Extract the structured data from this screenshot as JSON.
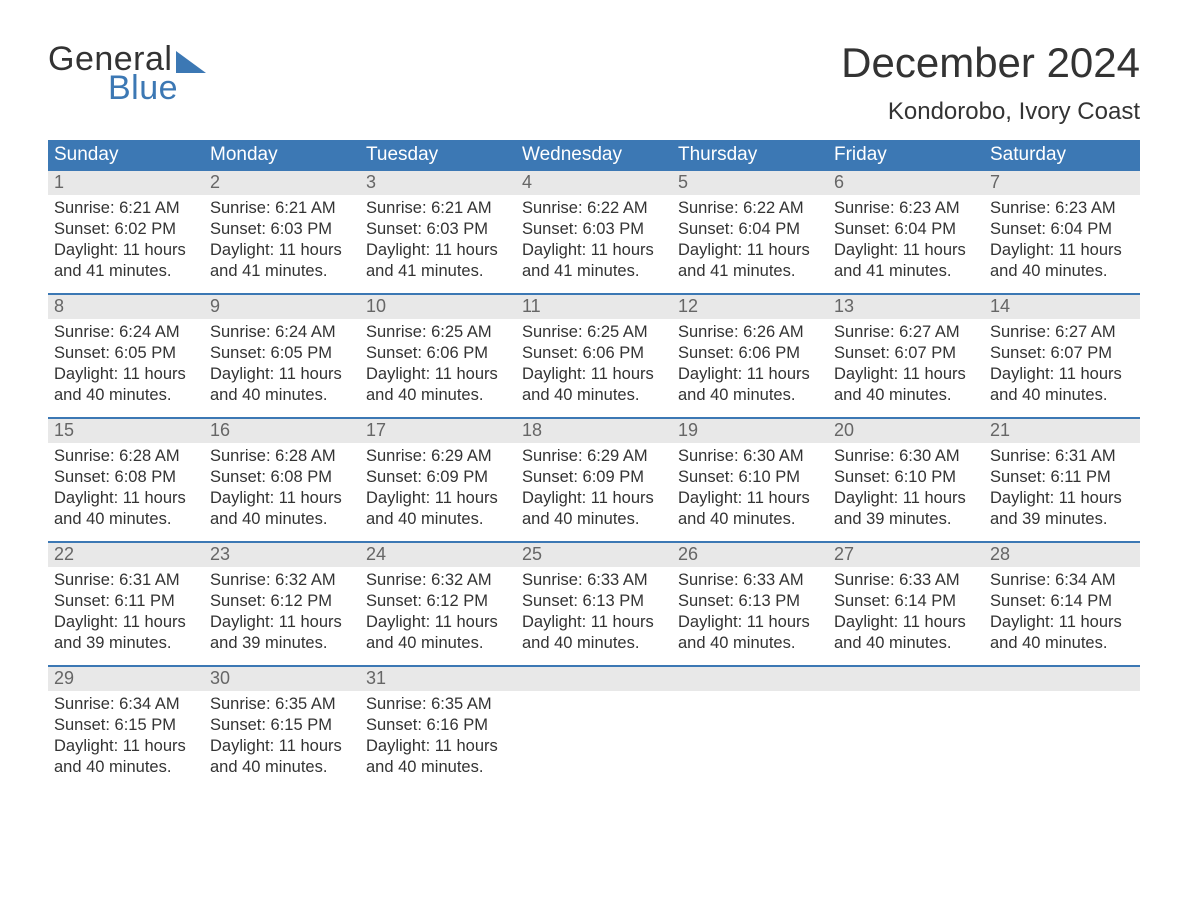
{
  "brand": {
    "word1": "General",
    "word2": "Blue",
    "word1_color": "#333333",
    "word2_color": "#3c78b4",
    "wedge_color": "#3c78b4",
    "font_size": 34
  },
  "header": {
    "month_title": "December 2024",
    "location": "Kondorobo, Ivory Coast",
    "title_color": "#333333",
    "title_fontsize": 42,
    "location_fontsize": 24
  },
  "calendar": {
    "header_bg": "#3c78b4",
    "header_text_color": "#ffffff",
    "row_divider_color": "#3c78b4",
    "daynum_bg": "#e8e8e8",
    "daynum_color": "#666666",
    "body_text_color": "#333333",
    "background_color": "#ffffff",
    "body_fontsize": 16.5,
    "dow_fontsize": 19,
    "days_of_week": [
      "Sunday",
      "Monday",
      "Tuesday",
      "Wednesday",
      "Thursday",
      "Friday",
      "Saturday"
    ],
    "leading_blanks": 0,
    "days": [
      {
        "n": 1,
        "sunrise": "6:21 AM",
        "sunset": "6:02 PM",
        "daylight": "11 hours and 41 minutes."
      },
      {
        "n": 2,
        "sunrise": "6:21 AM",
        "sunset": "6:03 PM",
        "daylight": "11 hours and 41 minutes."
      },
      {
        "n": 3,
        "sunrise": "6:21 AM",
        "sunset": "6:03 PM",
        "daylight": "11 hours and 41 minutes."
      },
      {
        "n": 4,
        "sunrise": "6:22 AM",
        "sunset": "6:03 PM",
        "daylight": "11 hours and 41 minutes."
      },
      {
        "n": 5,
        "sunrise": "6:22 AM",
        "sunset": "6:04 PM",
        "daylight": "11 hours and 41 minutes."
      },
      {
        "n": 6,
        "sunrise": "6:23 AM",
        "sunset": "6:04 PM",
        "daylight": "11 hours and 41 minutes."
      },
      {
        "n": 7,
        "sunrise": "6:23 AM",
        "sunset": "6:04 PM",
        "daylight": "11 hours and 40 minutes."
      },
      {
        "n": 8,
        "sunrise": "6:24 AM",
        "sunset": "6:05 PM",
        "daylight": "11 hours and 40 minutes."
      },
      {
        "n": 9,
        "sunrise": "6:24 AM",
        "sunset": "6:05 PM",
        "daylight": "11 hours and 40 minutes."
      },
      {
        "n": 10,
        "sunrise": "6:25 AM",
        "sunset": "6:06 PM",
        "daylight": "11 hours and 40 minutes."
      },
      {
        "n": 11,
        "sunrise": "6:25 AM",
        "sunset": "6:06 PM",
        "daylight": "11 hours and 40 minutes."
      },
      {
        "n": 12,
        "sunrise": "6:26 AM",
        "sunset": "6:06 PM",
        "daylight": "11 hours and 40 minutes."
      },
      {
        "n": 13,
        "sunrise": "6:27 AM",
        "sunset": "6:07 PM",
        "daylight": "11 hours and 40 minutes."
      },
      {
        "n": 14,
        "sunrise": "6:27 AM",
        "sunset": "6:07 PM",
        "daylight": "11 hours and 40 minutes."
      },
      {
        "n": 15,
        "sunrise": "6:28 AM",
        "sunset": "6:08 PM",
        "daylight": "11 hours and 40 minutes."
      },
      {
        "n": 16,
        "sunrise": "6:28 AM",
        "sunset": "6:08 PM",
        "daylight": "11 hours and 40 minutes."
      },
      {
        "n": 17,
        "sunrise": "6:29 AM",
        "sunset": "6:09 PM",
        "daylight": "11 hours and 40 minutes."
      },
      {
        "n": 18,
        "sunrise": "6:29 AM",
        "sunset": "6:09 PM",
        "daylight": "11 hours and 40 minutes."
      },
      {
        "n": 19,
        "sunrise": "6:30 AM",
        "sunset": "6:10 PM",
        "daylight": "11 hours and 40 minutes."
      },
      {
        "n": 20,
        "sunrise": "6:30 AM",
        "sunset": "6:10 PM",
        "daylight": "11 hours and 39 minutes."
      },
      {
        "n": 21,
        "sunrise": "6:31 AM",
        "sunset": "6:11 PM",
        "daylight": "11 hours and 39 minutes."
      },
      {
        "n": 22,
        "sunrise": "6:31 AM",
        "sunset": "6:11 PM",
        "daylight": "11 hours and 39 minutes."
      },
      {
        "n": 23,
        "sunrise": "6:32 AM",
        "sunset": "6:12 PM",
        "daylight": "11 hours and 39 minutes."
      },
      {
        "n": 24,
        "sunrise": "6:32 AM",
        "sunset": "6:12 PM",
        "daylight": "11 hours and 40 minutes."
      },
      {
        "n": 25,
        "sunrise": "6:33 AM",
        "sunset": "6:13 PM",
        "daylight": "11 hours and 40 minutes."
      },
      {
        "n": 26,
        "sunrise": "6:33 AM",
        "sunset": "6:13 PM",
        "daylight": "11 hours and 40 minutes."
      },
      {
        "n": 27,
        "sunrise": "6:33 AM",
        "sunset": "6:14 PM",
        "daylight": "11 hours and 40 minutes."
      },
      {
        "n": 28,
        "sunrise": "6:34 AM",
        "sunset": "6:14 PM",
        "daylight": "11 hours and 40 minutes."
      },
      {
        "n": 29,
        "sunrise": "6:34 AM",
        "sunset": "6:15 PM",
        "daylight": "11 hours and 40 minutes."
      },
      {
        "n": 30,
        "sunrise": "6:35 AM",
        "sunset": "6:15 PM",
        "daylight": "11 hours and 40 minutes."
      },
      {
        "n": 31,
        "sunrise": "6:35 AM",
        "sunset": "6:16 PM",
        "daylight": "11 hours and 40 minutes."
      }
    ],
    "labels": {
      "sunrise_prefix": "Sunrise: ",
      "sunset_prefix": "Sunset: ",
      "daylight_prefix": "Daylight: "
    }
  }
}
